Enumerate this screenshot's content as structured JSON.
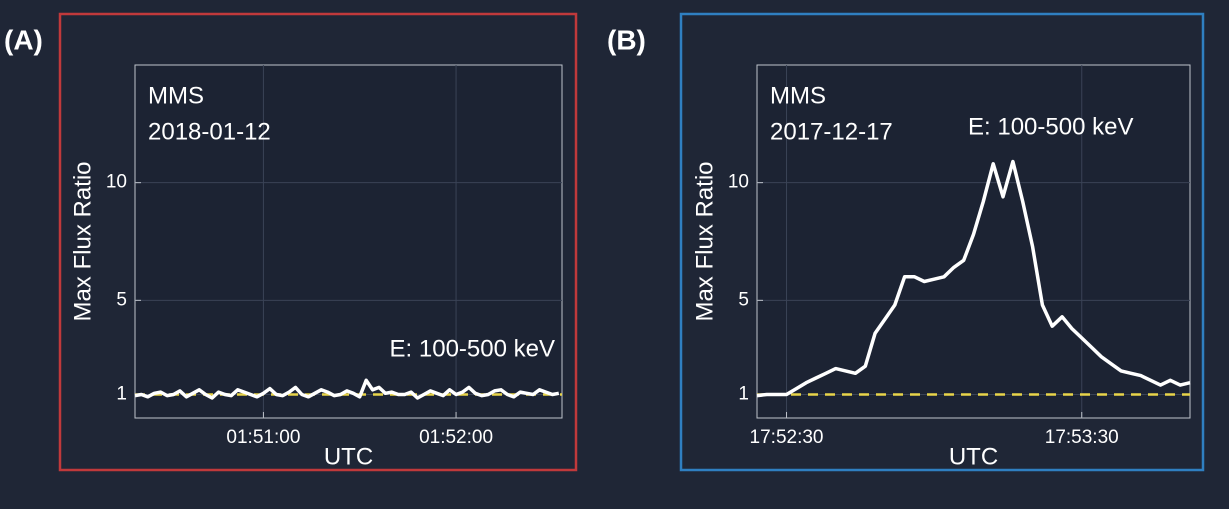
{
  "chart_data": [
    {
      "type": "line",
      "panel_label": "(A)",
      "frame_color": "#c0393b",
      "annotations": [
        "MMS",
        "2018-01-12",
        "E: 100-500 keV"
      ],
      "ylabel": "Max Flux Ratio",
      "xlabel": "UTC",
      "x": [
        "01:50:20",
        "01:50:22",
        "01:50:24",
        "01:50:26",
        "01:50:28",
        "01:50:30",
        "01:50:32",
        "01:50:34",
        "01:50:36",
        "01:50:38",
        "01:50:40",
        "01:50:42",
        "01:50:44",
        "01:50:46",
        "01:50:48",
        "01:50:50",
        "01:50:52",
        "01:50:54",
        "01:50:56",
        "01:50:58",
        "01:51:00",
        "01:51:02",
        "01:51:04",
        "01:51:06",
        "01:51:08",
        "01:51:10",
        "01:51:12",
        "01:51:14",
        "01:51:16",
        "01:51:18",
        "01:51:20",
        "01:51:22",
        "01:51:24",
        "01:51:26",
        "01:51:28",
        "01:51:30",
        "01:51:32",
        "01:51:34",
        "01:51:36",
        "01:51:38",
        "01:51:40",
        "01:51:42",
        "01:51:44",
        "01:51:46",
        "01:51:48",
        "01:51:50",
        "01:51:52",
        "01:51:54",
        "01:51:56",
        "01:51:58",
        "01:52:00",
        "01:52:02",
        "01:52:04",
        "01:52:06",
        "01:52:08",
        "01:52:10",
        "01:52:12",
        "01:52:14",
        "01:52:16",
        "01:52:18",
        "01:52:20",
        "01:52:22",
        "01:52:24",
        "01:52:26",
        "01:52:28",
        "01:52:30",
        "01:52:32"
      ],
      "series": [
        {
          "color": "#ffffff",
          "values": [
            0.95,
            1.0,
            0.9,
            1.05,
            1.1,
            0.95,
            1.0,
            1.15,
            0.9,
            1.05,
            1.2,
            1.0,
            0.85,
            1.1,
            1.0,
            0.95,
            1.2,
            1.1,
            1.0,
            0.9,
            1.05,
            1.25,
            1.0,
            0.95,
            1.1,
            1.3,
            1.0,
            0.9,
            1.05,
            1.2,
            1.1,
            0.95,
            1.0,
            1.15,
            1.05,
            0.9,
            1.6,
            1.2,
            1.3,
            1.05,
            1.1,
            1.0,
            1.0,
            1.1,
            0.85,
            1.0,
            1.15,
            1.05,
            0.95,
            1.2,
            1.0,
            1.1,
            1.3,
            1.05,
            0.95,
            1.0,
            1.15,
            1.2,
            1.0,
            0.9,
            1.1,
            1.05,
            1.0,
            1.2,
            1.1,
            1.0,
            1.05
          ]
        }
      ],
      "reference_line": {
        "value": 1,
        "color": "#e8d44a",
        "style": "dashed"
      },
      "xlim": [
        "01:50:20",
        "01:52:33"
      ],
      "xticks": [
        "01:51:00",
        "01:52:00"
      ],
      "ylim": [
        0,
        15
      ],
      "yticks": [
        1,
        5,
        10
      ],
      "grid": true
    },
    {
      "type": "line",
      "panel_label": "(B)",
      "frame_color": "#2f7fc1",
      "annotations": [
        "MMS",
        "2017-12-17",
        "E: 100-500 keV"
      ],
      "ylabel": "Max Flux Ratio",
      "xlabel": "UTC",
      "x": [
        "17:52:24",
        "17:52:26",
        "17:52:28",
        "17:52:30",
        "17:52:32",
        "17:52:34",
        "17:52:36",
        "17:52:38",
        "17:52:40",
        "17:52:42",
        "17:52:44",
        "17:52:46",
        "17:52:48",
        "17:52:50",
        "17:52:52",
        "17:52:54",
        "17:52:56",
        "17:52:58",
        "17:53:00",
        "17:53:02",
        "17:53:04",
        "17:53:06",
        "17:53:08",
        "17:53:10",
        "17:53:12",
        "17:53:14",
        "17:53:16",
        "17:53:18",
        "17:53:20",
        "17:53:22",
        "17:53:24",
        "17:53:26",
        "17:53:28",
        "17:53:30",
        "17:53:32",
        "17:53:34",
        "17:53:36",
        "17:53:38",
        "17:53:40",
        "17:53:42",
        "17:53:44",
        "17:53:46",
        "17:53:48",
        "17:53:50",
        "17:53:52"
      ],
      "series": [
        {
          "color": "#ffffff",
          "values": [
            0.95,
            1.0,
            1.0,
            1.0,
            1.25,
            1.5,
            1.7,
            1.9,
            2.1,
            2.0,
            1.9,
            2.2,
            3.6,
            4.2,
            4.8,
            6.0,
            6.0,
            5.8,
            5.9,
            6.0,
            6.4,
            6.7,
            7.8,
            9.2,
            10.8,
            9.4,
            10.9,
            9.2,
            7.3,
            4.8,
            3.9,
            4.3,
            3.8,
            3.4,
            3.0,
            2.6,
            2.3,
            2.0,
            1.9,
            1.8,
            1.6,
            1.4,
            1.6,
            1.4,
            1.5
          ]
        }
      ],
      "reference_line": {
        "value": 1,
        "color": "#e8d44a",
        "style": "dashed"
      },
      "xlim": [
        "17:52:24",
        "17:53:52"
      ],
      "xticks": [
        "17:52:30",
        "17:53:30"
      ],
      "ylim": [
        0,
        15
      ],
      "yticks": [
        1,
        5,
        10
      ],
      "grid": true
    }
  ]
}
